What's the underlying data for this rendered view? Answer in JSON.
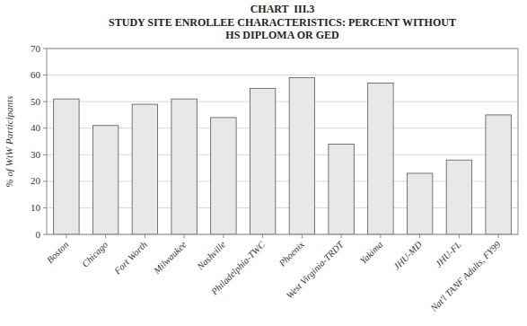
{
  "chart_data": {
    "type": "bar",
    "title": "CHART  III.3\nSTUDY SITE ENROLLEE CHARACTERISTICS: PERCENT WITHOUT\nHS DIPLOMA OR GED",
    "y_label": "% of WtW Participants",
    "categories": [
      "Boston",
      "Chicago",
      "Fort Worth",
      "Milwaukee",
      "Nashville",
      "Philadelphia-TWC",
      "Phoenix",
      "West Virginia-TRDT",
      "Yakima",
      "JHU-MD",
      "JHU-FL",
      "Nat'l TANF Adults, FY99"
    ],
    "values": [
      51,
      41,
      49,
      51,
      44,
      55,
      59,
      34,
      57,
      23,
      28,
      45
    ],
    "color": "#e8e8e8",
    "ylim": [
      0,
      70
    ],
    "yticks": [
      0,
      10,
      20,
      30,
      40,
      50,
      60,
      70
    ],
    "grid": true
  }
}
